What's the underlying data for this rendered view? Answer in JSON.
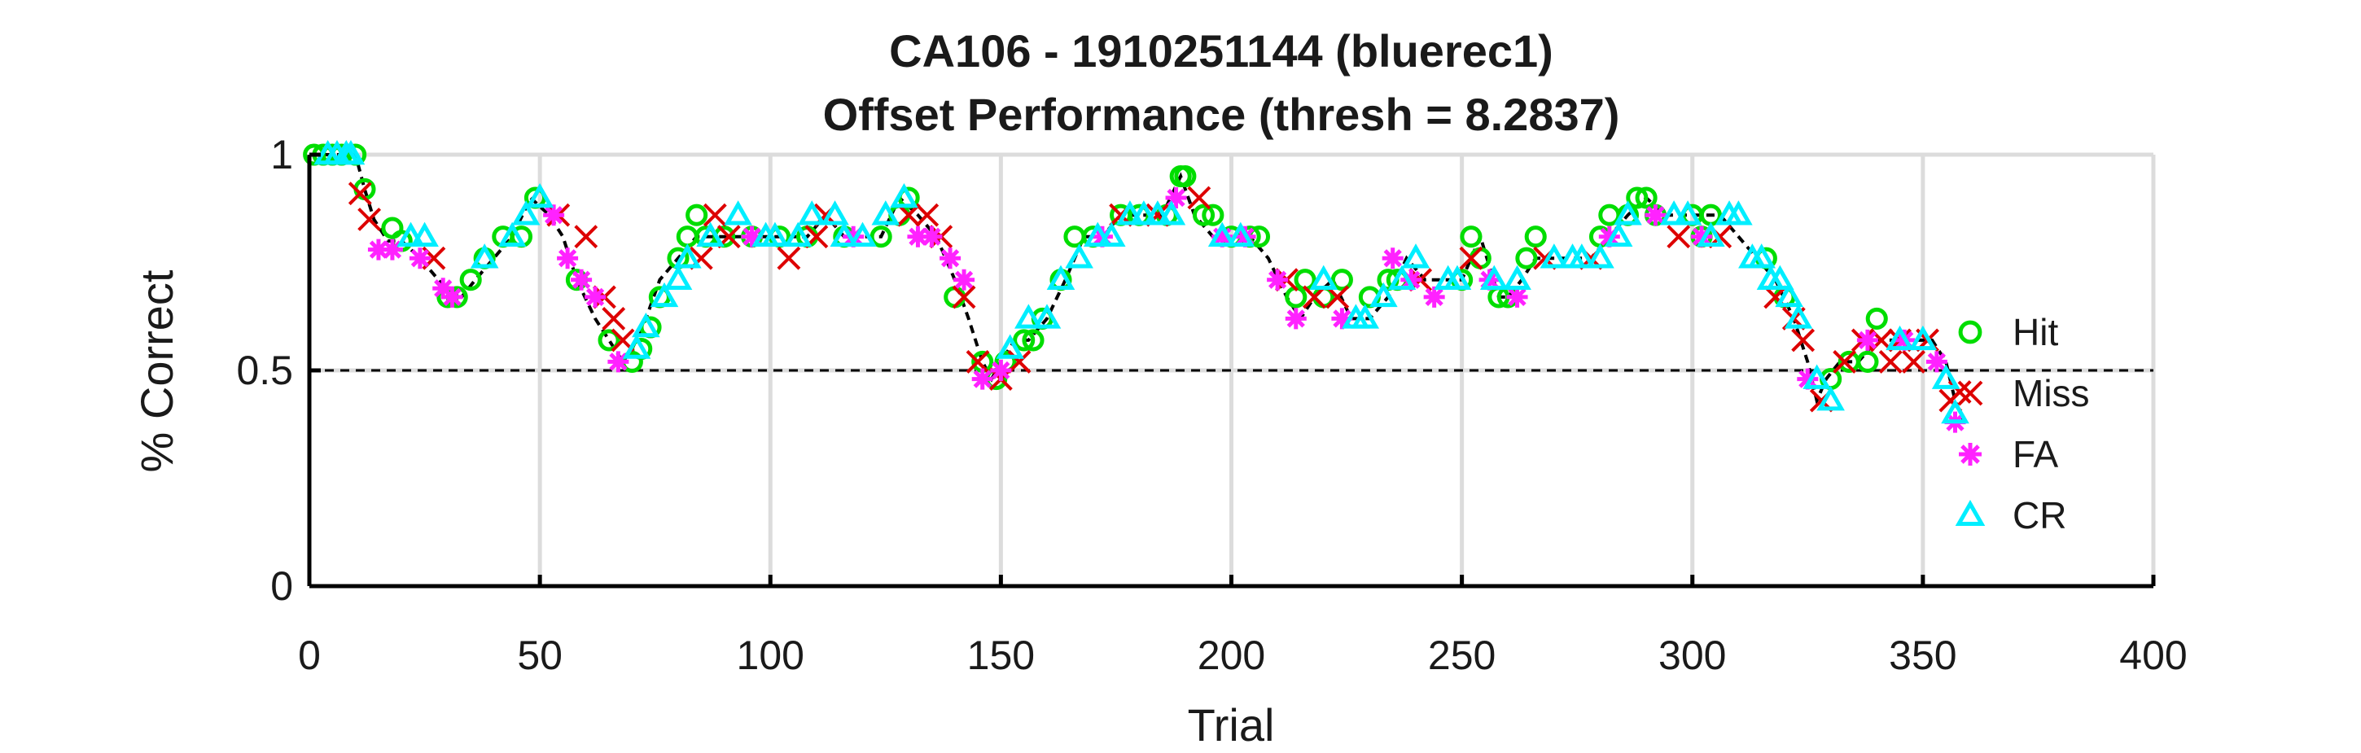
{
  "chart_data": {
    "type": "scatter",
    "title": "CA106 - 1910251144 (bluerec1)",
    "subtitle": "Offset Performance (thresh = 8.2837)",
    "xlabel": "Trial",
    "ylabel": "% Correct",
    "xlim": [
      0,
      400
    ],
    "ylim": [
      0,
      1
    ],
    "x_ticks": [
      0,
      50,
      100,
      150,
      200,
      250,
      300,
      350,
      400
    ],
    "y_ticks": [
      0,
      0.5,
      1
    ],
    "y_tick_labels": [
      "0",
      "0.5",
      "1"
    ],
    "grid": true,
    "legend_position": "right",
    "reference_line": {
      "y": 0.5,
      "style": "dashed"
    },
    "performance_curve": {
      "x": [
        0,
        5,
        10,
        12,
        14,
        17,
        20,
        24,
        28,
        31,
        33,
        36,
        40,
        44,
        48,
        52,
        55,
        58,
        62,
        65,
        68,
        70,
        73,
        76,
        80,
        84,
        88,
        92,
        96,
        100,
        104,
        108,
        112,
        116,
        120,
        124,
        128,
        132,
        136,
        140,
        143,
        146,
        148,
        150,
        153,
        156,
        160,
        164,
        168,
        172,
        176,
        180,
        185,
        189,
        192,
        196,
        200,
        204,
        208,
        212,
        215,
        218,
        222,
        226,
        230,
        234,
        238,
        242,
        246,
        250,
        254,
        258,
        260,
        263,
        266,
        270,
        274,
        278,
        282,
        286,
        290,
        294,
        298,
        302,
        306,
        310,
        314,
        318,
        322,
        325,
        327,
        329,
        332,
        336,
        340,
        344,
        348,
        352,
        355,
        357,
        359
      ],
      "y": [
        1.0,
        1.0,
        1.0,
        0.92,
        0.85,
        0.8,
        0.8,
        0.76,
        0.71,
        0.67,
        0.67,
        0.71,
        0.76,
        0.81,
        0.9,
        0.86,
        0.81,
        0.71,
        0.62,
        0.57,
        0.52,
        0.55,
        0.62,
        0.71,
        0.76,
        0.81,
        0.81,
        0.81,
        0.81,
        0.81,
        0.81,
        0.81,
        0.86,
        0.81,
        0.81,
        0.81,
        0.9,
        0.86,
        0.81,
        0.71,
        0.62,
        0.52,
        0.48,
        0.52,
        0.57,
        0.57,
        0.62,
        0.71,
        0.81,
        0.81,
        0.86,
        0.86,
        0.86,
        0.95,
        0.86,
        0.81,
        0.81,
        0.81,
        0.76,
        0.67,
        0.62,
        0.67,
        0.71,
        0.62,
        0.62,
        0.67,
        0.76,
        0.71,
        0.71,
        0.71,
        0.81,
        0.67,
        0.67,
        0.71,
        0.76,
        0.76,
        0.76,
        0.76,
        0.81,
        0.86,
        0.9,
        0.86,
        0.86,
        0.86,
        0.86,
        0.81,
        0.76,
        0.71,
        0.62,
        0.52,
        0.43,
        0.48,
        0.52,
        0.52,
        0.57,
        0.57,
        0.57,
        0.57,
        0.52,
        0.43,
        0.38
      ]
    },
    "series": [
      {
        "name": "Hit",
        "marker": "circle",
        "color": "#00dd00",
        "x": [
          1,
          3,
          5,
          7,
          10,
          12,
          18,
          20,
          30,
          32,
          35,
          38,
          42,
          46,
          49,
          58,
          65,
          70,
          72,
          74,
          76,
          80,
          82,
          84,
          86,
          90,
          96,
          102,
          108,
          116,
          124,
          128,
          130,
          140,
          146,
          149,
          151,
          155,
          157,
          159,
          163,
          166,
          170,
          176,
          180,
          186,
          189,
          190,
          194,
          196,
          200,
          204,
          206,
          214,
          216,
          220,
          224,
          230,
          234,
          236,
          250,
          252,
          254,
          258,
          260,
          264,
          266,
          280,
          282,
          286,
          288,
          290,
          292,
          300,
          302,
          304,
          316,
          320,
          330,
          334,
          338,
          340
        ],
        "y": [
          1.0,
          1.0,
          1.0,
          1.0,
          1.0,
          0.92,
          0.83,
          0.8,
          0.67,
          0.67,
          0.71,
          0.76,
          0.81,
          0.81,
          0.9,
          0.71,
          0.57,
          0.52,
          0.55,
          0.6,
          0.67,
          0.76,
          0.81,
          0.86,
          0.81,
          0.81,
          0.81,
          0.81,
          0.81,
          0.81,
          0.81,
          0.86,
          0.9,
          0.67,
          0.52,
          0.48,
          0.52,
          0.57,
          0.57,
          0.62,
          0.71,
          0.81,
          0.81,
          0.86,
          0.86,
          0.86,
          0.95,
          0.95,
          0.86,
          0.86,
          0.81,
          0.81,
          0.81,
          0.67,
          0.71,
          0.67,
          0.71,
          0.67,
          0.71,
          0.71,
          0.71,
          0.81,
          0.76,
          0.67,
          0.67,
          0.76,
          0.81,
          0.81,
          0.86,
          0.86,
          0.9,
          0.9,
          0.86,
          0.86,
          0.81,
          0.86,
          0.76,
          0.67,
          0.48,
          0.52,
          0.52,
          0.62
        ]
      },
      {
        "name": "Miss",
        "marker": "x",
        "color": "#dd0000",
        "x": [
          11,
          13,
          27,
          54,
          60,
          64,
          66,
          68,
          85,
          88,
          91,
          104,
          110,
          112,
          130,
          134,
          137,
          142,
          145,
          150,
          154,
          176,
          184,
          193,
          212,
          218,
          223,
          241,
          252,
          268,
          278,
          297,
          306,
          318,
          322,
          324,
          328,
          333,
          337,
          341,
          343,
          345,
          348,
          351,
          356,
          358
        ],
        "y": [
          0.91,
          0.85,
          0.76,
          0.86,
          0.81,
          0.67,
          0.62,
          0.57,
          0.76,
          0.86,
          0.81,
          0.76,
          0.81,
          0.86,
          0.86,
          0.86,
          0.81,
          0.67,
          0.52,
          0.48,
          0.52,
          0.86,
          0.86,
          0.9,
          0.71,
          0.67,
          0.67,
          0.71,
          0.76,
          0.76,
          0.76,
          0.81,
          0.81,
          0.67,
          0.62,
          0.57,
          0.43,
          0.52,
          0.57,
          0.57,
          0.52,
          0.57,
          0.52,
          0.57,
          0.43,
          0.45
        ]
      },
      {
        "name": "FA",
        "marker": "asterisk",
        "color": "#ff22ff",
        "x": [
          15,
          18,
          24,
          29,
          31,
          53,
          56,
          59,
          62,
          67,
          96,
          118,
          132,
          135,
          139,
          142,
          146,
          150,
          172,
          188,
          198,
          203,
          210,
          214,
          224,
          235,
          239,
          244,
          256,
          262,
          282,
          292,
          302,
          325,
          338,
          346,
          353,
          357
        ],
        "y": [
          0.78,
          0.78,
          0.76,
          0.69,
          0.67,
          0.86,
          0.76,
          0.71,
          0.67,
          0.52,
          0.81,
          0.81,
          0.81,
          0.81,
          0.76,
          0.71,
          0.48,
          0.5,
          0.81,
          0.9,
          0.81,
          0.81,
          0.71,
          0.62,
          0.62,
          0.76,
          0.71,
          0.67,
          0.71,
          0.67,
          0.81,
          0.86,
          0.81,
          0.48,
          0.57,
          0.57,
          0.52,
          0.38
        ]
      },
      {
        "name": "CR",
        "marker": "triangle",
        "color": "#00eeff",
        "x": [
          4,
          6,
          8,
          9,
          22,
          25,
          38,
          44,
          47,
          50,
          71,
          73,
          77,
          80,
          82,
          87,
          93,
          99,
          101,
          106,
          109,
          114,
          116,
          120,
          125,
          129,
          152,
          156,
          160,
          163,
          167,
          171,
          174,
          178,
          181,
          184,
          187,
          198,
          202,
          220,
          227,
          229,
          233,
          237,
          240,
          247,
          249,
          257,
          262,
          270,
          274,
          276,
          280,
          284,
          286,
          296,
          299,
          304,
          308,
          310,
          313,
          315,
          317,
          319,
          321,
          323,
          327,
          330,
          345,
          350,
          355,
          357
        ],
        "y": [
          1.0,
          1.0,
          1.0,
          1.0,
          0.81,
          0.81,
          0.76,
          0.81,
          0.86,
          0.9,
          0.55,
          0.6,
          0.67,
          0.71,
          0.76,
          0.81,
          0.86,
          0.81,
          0.81,
          0.81,
          0.86,
          0.86,
          0.81,
          0.81,
          0.86,
          0.9,
          0.55,
          0.62,
          0.62,
          0.71,
          0.76,
          0.81,
          0.81,
          0.86,
          0.86,
          0.86,
          0.86,
          0.81,
          0.81,
          0.71,
          0.62,
          0.62,
          0.67,
          0.71,
          0.76,
          0.71,
          0.71,
          0.71,
          0.71,
          0.76,
          0.76,
          0.76,
          0.76,
          0.81,
          0.86,
          0.86,
          0.86,
          0.81,
          0.86,
          0.86,
          0.76,
          0.76,
          0.71,
          0.71,
          0.67,
          0.62,
          0.48,
          0.43,
          0.57,
          0.57,
          0.48,
          0.4
        ]
      }
    ]
  }
}
